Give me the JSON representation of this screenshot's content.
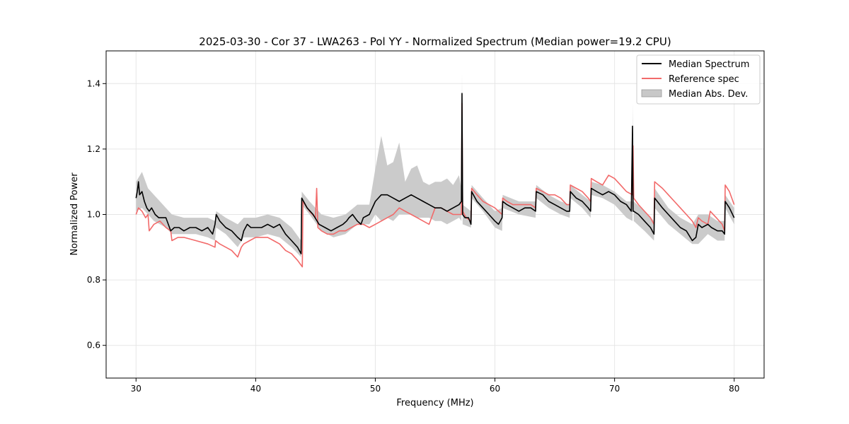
{
  "chart_data": {
    "type": "line",
    "title": "2025-03-30 - Cor 37 - LWA263 - Pol YY - Normalized Spectrum (Median power=19.2 CPU)",
    "xlabel": "Frequency (MHz)",
    "ylabel": "Normalized Power",
    "xlim": [
      27.5,
      82.5
    ],
    "ylim": [
      0.5,
      1.5
    ],
    "xticks": [
      30,
      40,
      50,
      60,
      70,
      80
    ],
    "yticks": [
      0.6,
      0.8,
      1.0,
      1.2,
      1.4
    ],
    "xtick_labels": [
      "30",
      "40",
      "50",
      "60",
      "70",
      "80"
    ],
    "ytick_labels": [
      "0.6",
      "0.8",
      "1.0",
      "1.2",
      "1.4"
    ],
    "grid": true,
    "legend_position": "top-right",
    "colors": {
      "median": "#000000",
      "reference": "#f26a6a",
      "band": "#c8c8c8"
    },
    "series": [
      {
        "name": "Median Spectrum",
        "x": [
          30.0,
          30.1,
          30.2,
          30.3,
          30.5,
          30.7,
          30.9,
          31.1,
          31.3,
          31.6,
          31.9,
          32.2,
          32.5,
          32.7,
          32.9,
          33.2,
          33.6,
          34.0,
          34.5,
          35.0,
          35.5,
          36.0,
          36.4,
          36.6,
          36.7,
          37.0,
          37.5,
          38.0,
          38.5,
          38.8,
          39.0,
          39.3,
          39.6,
          40.0,
          40.5,
          41.0,
          41.5,
          42.0,
          42.5,
          43.0,
          43.5,
          43.8,
          43.85,
          44.3,
          44.8,
          45.3,
          45.8,
          46.3,
          46.8,
          47.3,
          47.6,
          47.8,
          48.1,
          48.5,
          48.8,
          49.0,
          49.5,
          50.0,
          50.5,
          51.0,
          51.5,
          52.0,
          52.5,
          53.0,
          53.5,
          54.0,
          54.5,
          55.0,
          55.5,
          56.0,
          56.5,
          57.0,
          57.2,
          57.25,
          57.3,
          57.5,
          57.8,
          58.0,
          58.05,
          58.5,
          59.0,
          59.5,
          60.0,
          60.3,
          60.6,
          60.65,
          61.0,
          61.5,
          62.0,
          62.5,
          63.0,
          63.4,
          63.45,
          64.0,
          64.5,
          65.0,
          65.5,
          66.0,
          66.25,
          66.3,
          66.8,
          67.3,
          67.8,
          68.0,
          68.05,
          68.5,
          69.0,
          69.5,
          70.0,
          70.5,
          71.0,
          71.4,
          71.5,
          71.55,
          71.6,
          72.0,
          72.5,
          73.0,
          73.3,
          73.35,
          74.0,
          74.5,
          75.0,
          75.5,
          76.0,
          76.5,
          76.8,
          77.0,
          77.3,
          77.8,
          78.1,
          78.6,
          79.0,
          79.2,
          79.25,
          79.6,
          80.0
        ],
        "values": [
          1.05,
          1.07,
          1.1,
          1.06,
          1.07,
          1.04,
          1.02,
          1.01,
          1.02,
          1.0,
          0.99,
          0.99,
          0.99,
          0.97,
          0.95,
          0.96,
          0.96,
          0.95,
          0.96,
          0.96,
          0.95,
          0.96,
          0.94,
          0.97,
          1.0,
          0.98,
          0.96,
          0.95,
          0.93,
          0.92,
          0.95,
          0.97,
          0.96,
          0.96,
          0.96,
          0.97,
          0.96,
          0.97,
          0.94,
          0.92,
          0.9,
          0.88,
          1.05,
          1.02,
          1.0,
          0.97,
          0.96,
          0.95,
          0.96,
          0.97,
          0.98,
          0.99,
          1.0,
          0.98,
          0.97,
          0.99,
          1.0,
          1.04,
          1.06,
          1.06,
          1.05,
          1.04,
          1.05,
          1.06,
          1.05,
          1.04,
          1.03,
          1.02,
          1.02,
          1.01,
          1.02,
          1.03,
          1.04,
          1.37,
          1.0,
          0.99,
          0.99,
          0.97,
          1.07,
          1.04,
          1.02,
          1.0,
          0.98,
          0.97,
          0.99,
          1.04,
          1.03,
          1.02,
          1.01,
          1.02,
          1.02,
          1.01,
          1.07,
          1.06,
          1.04,
          1.03,
          1.02,
          1.01,
          1.01,
          1.07,
          1.05,
          1.04,
          1.02,
          1.01,
          1.08,
          1.07,
          1.06,
          1.07,
          1.06,
          1.04,
          1.03,
          1.01,
          1.27,
          1.01,
          1.01,
          1.0,
          0.98,
          0.96,
          0.94,
          1.05,
          1.02,
          1.0,
          0.98,
          0.96,
          0.95,
          0.92,
          0.93,
          0.97,
          0.96,
          0.97,
          0.96,
          0.95,
          0.95,
          0.94,
          1.04,
          1.02,
          0.99
        ]
      },
      {
        "name": "Reference spec",
        "x": [
          30.0,
          30.2,
          30.5,
          30.8,
          31.0,
          31.1,
          31.5,
          32.0,
          32.5,
          32.9,
          33.0,
          33.5,
          34.0,
          35.0,
          36.0,
          36.6,
          36.65,
          37.0,
          37.5,
          38.0,
          38.5,
          38.8,
          39.0,
          39.5,
          40.0,
          40.5,
          41.0,
          41.5,
          42.0,
          42.5,
          43.0,
          43.5,
          43.9,
          43.95,
          44.5,
          45.0,
          45.1,
          45.2,
          45.5,
          46.0,
          46.5,
          47.0,
          47.5,
          48.0,
          48.5,
          49.0,
          49.5,
          50.0,
          50.5,
          51.0,
          51.5,
          52.0,
          52.5,
          53.0,
          53.5,
          54.0,
          54.5,
          55.0,
          55.5,
          56.0,
          56.5,
          57.0,
          57.2,
          57.25,
          57.3,
          57.6,
          58.0,
          58.05,
          58.5,
          59.0,
          59.5,
          60.0,
          60.6,
          60.65,
          61.0,
          61.5,
          62.0,
          62.5,
          63.0,
          63.4,
          63.45,
          64.0,
          64.5,
          65.0,
          65.5,
          66.0,
          66.25,
          66.3,
          66.8,
          67.3,
          67.8,
          68.0,
          68.05,
          68.5,
          69.0,
          69.5,
          70.0,
          70.5,
          71.0,
          71.5,
          71.55,
          71.6,
          72.0,
          72.5,
          73.0,
          73.3,
          73.35,
          74.0,
          74.5,
          75.0,
          75.5,
          76.0,
          76.5,
          76.8,
          77.0,
          77.3,
          77.8,
          78.0,
          78.5,
          79.0,
          79.2,
          79.25,
          79.6,
          80.0
        ],
        "values": [
          1.0,
          1.02,
          1.01,
          0.99,
          1.0,
          0.95,
          0.97,
          0.98,
          0.96,
          0.95,
          0.92,
          0.93,
          0.93,
          0.92,
          0.91,
          0.9,
          0.92,
          0.91,
          0.9,
          0.89,
          0.87,
          0.9,
          0.91,
          0.92,
          0.93,
          0.93,
          0.93,
          0.92,
          0.91,
          0.89,
          0.88,
          0.86,
          0.84,
          1.04,
          1.01,
          0.99,
          1.08,
          0.96,
          0.95,
          0.94,
          0.94,
          0.95,
          0.95,
          0.96,
          0.97,
          0.97,
          0.96,
          0.97,
          0.98,
          0.99,
          1.0,
          1.02,
          1.01,
          1.0,
          0.99,
          0.98,
          0.97,
          1.02,
          1.02,
          1.01,
          1.0,
          1.0,
          1.0,
          1.34,
          1.01,
          0.99,
          0.98,
          1.08,
          1.06,
          1.04,
          1.03,
          1.02,
          1.0,
          1.05,
          1.04,
          1.03,
          1.03,
          1.03,
          1.03,
          1.02,
          1.08,
          1.07,
          1.06,
          1.06,
          1.05,
          1.03,
          1.03,
          1.09,
          1.08,
          1.07,
          1.05,
          1.04,
          1.11,
          1.1,
          1.09,
          1.12,
          1.11,
          1.09,
          1.07,
          1.06,
          1.21,
          1.05,
          1.03,
          1.01,
          0.99,
          0.97,
          1.1,
          1.08,
          1.06,
          1.04,
          1.02,
          1.0,
          0.98,
          0.96,
          0.99,
          0.98,
          0.97,
          1.01,
          0.99,
          0.97,
          0.95,
          1.09,
          1.07,
          1.03
        ]
      },
      {
        "name": "Median Abs. Dev.",
        "x": [
          30.0,
          30.5,
          31.0,
          31.5,
          32.0,
          32.5,
          33.0,
          34.0,
          35.0,
          36.0,
          36.6,
          36.7,
          37.5,
          38.5,
          39.0,
          40.0,
          41.0,
          42.0,
          43.0,
          43.8,
          43.85,
          44.5,
          45.5,
          46.5,
          47.5,
          48.5,
          49.5,
          50.0,
          50.5,
          51.0,
          51.5,
          52.0,
          52.5,
          53.0,
          53.5,
          54.0,
          54.5,
          55.0,
          55.5,
          56.0,
          56.5,
          57.0,
          57.2,
          57.25,
          57.3,
          58.0,
          58.05,
          59.0,
          60.0,
          60.6,
          60.65,
          62.0,
          63.4,
          63.45,
          64.5,
          65.5,
          66.25,
          66.3,
          67.3,
          68.0,
          68.05,
          69.0,
          70.0,
          71.0,
          71.5,
          71.55,
          71.6,
          72.5,
          73.3,
          73.35,
          74.5,
          75.5,
          76.5,
          77.0,
          77.8,
          78.6,
          79.2,
          79.25,
          80.0
        ],
        "upper": [
          1.1,
          1.13,
          1.08,
          1.06,
          1.04,
          1.02,
          1.0,
          0.99,
          0.99,
          0.99,
          0.98,
          1.01,
          0.99,
          0.97,
          0.99,
          0.99,
          1.0,
          0.99,
          0.96,
          0.92,
          1.07,
          1.04,
          1.0,
          0.99,
          1.0,
          1.03,
          1.03,
          1.14,
          1.24,
          1.15,
          1.16,
          1.22,
          1.1,
          1.14,
          1.15,
          1.1,
          1.09,
          1.1,
          1.1,
          1.11,
          1.09,
          1.12,
          1.08,
          1.43,
          1.03,
          1.01,
          1.09,
          1.05,
          1.01,
          1.02,
          1.06,
          1.04,
          1.04,
          1.09,
          1.06,
          1.04,
          1.03,
          1.09,
          1.06,
          1.04,
          1.1,
          1.09,
          1.07,
          1.04,
          1.04,
          1.34,
          1.04,
          1.01,
          0.98,
          1.08,
          1.02,
          0.99,
          0.97,
          1.0,
          1.0,
          0.98,
          0.98,
          1.06,
          1.02
        ],
        "lower": [
          1.01,
          1.02,
          1.0,
          0.98,
          0.97,
          0.96,
          0.94,
          0.94,
          0.94,
          0.93,
          0.92,
          0.96,
          0.94,
          0.9,
          0.93,
          0.93,
          0.94,
          0.93,
          0.9,
          0.87,
          1.03,
          1.0,
          0.95,
          0.93,
          0.94,
          0.97,
          0.97,
          1.0,
          0.98,
          0.99,
          0.98,
          1.0,
          1.0,
          1.0,
          0.99,
          0.99,
          0.99,
          0.98,
          0.98,
          0.97,
          0.98,
          0.99,
          0.98,
          1.33,
          0.97,
          0.96,
          1.05,
          1.01,
          0.96,
          0.95,
          1.02,
          1.0,
          0.99,
          1.05,
          1.02,
          1.0,
          0.99,
          1.05,
          1.02,
          0.99,
          1.06,
          1.05,
          1.03,
          0.99,
          0.98,
          1.2,
          0.98,
          0.95,
          0.92,
          1.02,
          0.97,
          0.94,
          0.91,
          0.91,
          0.94,
          0.92,
          0.92,
          1.02,
          0.97
        ]
      }
    ]
  }
}
